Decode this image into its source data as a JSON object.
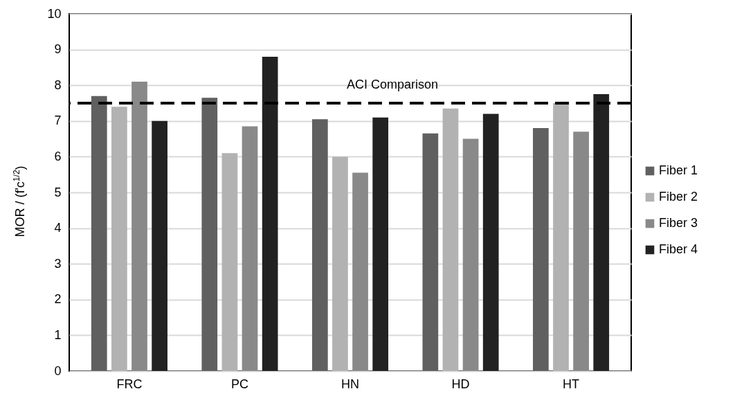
{
  "chart_data": {
    "type": "bar",
    "ylabel": "MOR / (f'c$^{1/2}$)",
    "categories": [
      "FRC",
      "PC",
      "HN",
      "HD",
      "HT"
    ],
    "series": [
      {
        "name": "Fiber 1",
        "color": "#606060",
        "values": [
          7.7,
          7.65,
          7.05,
          6.65,
          6.8
        ]
      },
      {
        "name": "Fiber 2",
        "color": "#b2b2b2",
        "values": [
          7.4,
          6.1,
          6.0,
          7.35,
          7.5
        ]
      },
      {
        "name": "Fiber 3",
        "color": "#898989",
        "values": [
          8.1,
          6.85,
          5.55,
          6.5,
          6.7
        ]
      },
      {
        "name": "Fiber 4",
        "color": "#222222",
        "values": [
          7.0,
          8.8,
          7.1,
          7.2,
          7.75
        ]
      }
    ],
    "ylim": [
      0,
      10
    ],
    "yticks": [
      0,
      1,
      2,
      3,
      4,
      5,
      6,
      7,
      8,
      9,
      10
    ],
    "grid": "y",
    "legend": "right",
    "ref_lines": [
      {
        "axis": "y",
        "value": 7.5,
        "label": "ACI Comparison",
        "line_style": "dashed",
        "color": "#000000"
      }
    ]
  }
}
